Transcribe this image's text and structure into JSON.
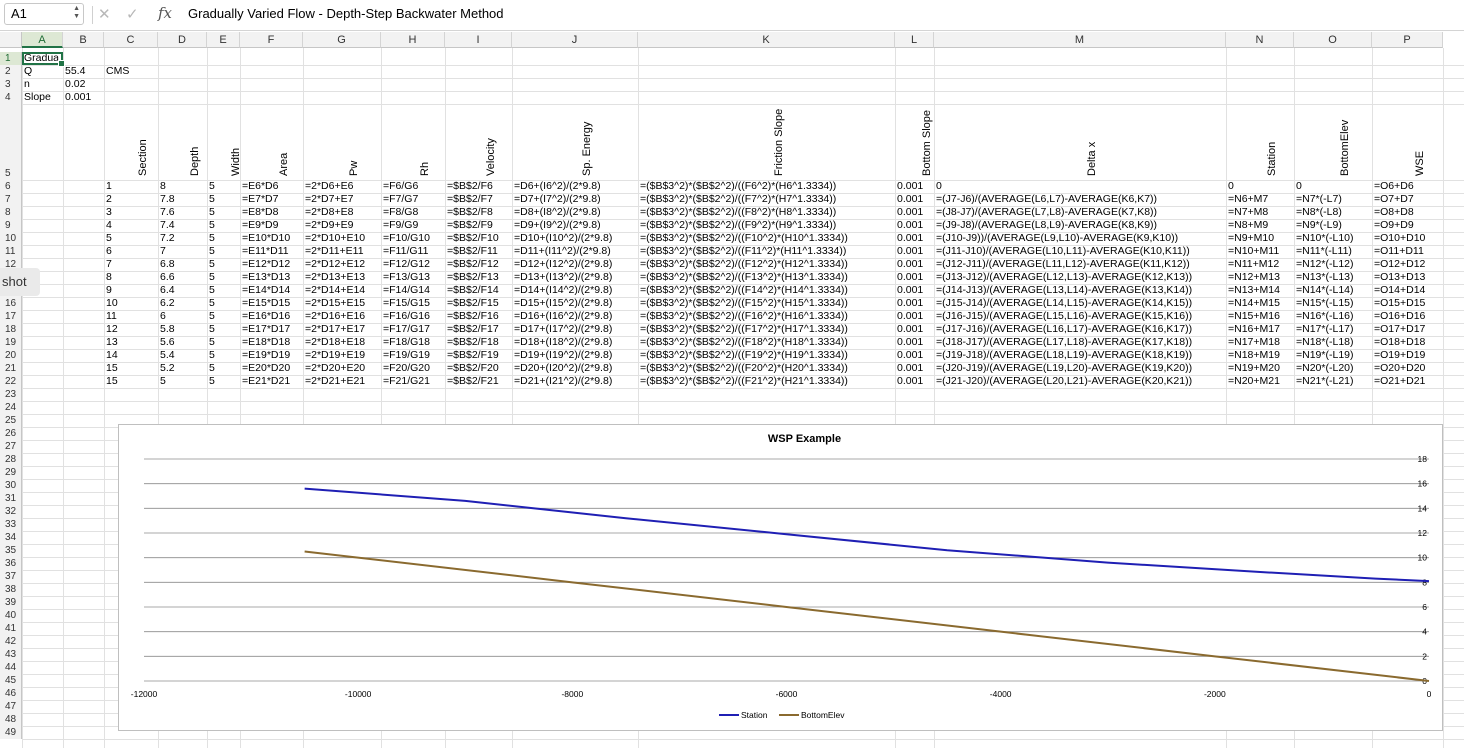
{
  "formula_bar": {
    "name_box": "A1",
    "formula": "Gradually Varied Flow - Depth-Step Backwater Method",
    "cancel_icon": "close-icon",
    "enter_icon": "check-icon",
    "fx_label": "fx"
  },
  "columns": [
    "A",
    "B",
    "C",
    "D",
    "E",
    "F",
    "G",
    "H",
    "I",
    "J",
    "K",
    "L",
    "M",
    "N",
    "O",
    "P"
  ],
  "rows": [
    "1",
    "2",
    "3",
    "4",
    "5",
    "6",
    "7",
    "8",
    "9",
    "10",
    "11",
    "12",
    "",
    "15",
    "16",
    "17",
    "18",
    "19",
    "20",
    "21",
    "22",
    "23",
    "24",
    "25",
    "26",
    "27",
    "28",
    "29",
    "30",
    "31",
    "32",
    "33",
    "34",
    "35",
    "36",
    "37",
    "38",
    "39",
    "40",
    "41",
    "42",
    "43",
    "44",
    "45",
    "46",
    "47",
    "48",
    "49"
  ],
  "inputs": {
    "a1": "Gradua",
    "a2": "Q",
    "b2": "55.4",
    "c2": "CMS",
    "a3": "n",
    "b3": "0.02",
    "a4": "Slope",
    "b4": "0.001"
  },
  "headers": [
    "Section",
    "Depth",
    "Width",
    "Area",
    "Pw",
    "Rh",
    "Velocity",
    "Sp. Energy",
    "Friction Slope",
    "Bottom Slope",
    "Delta x",
    "Station",
    "BottomElev",
    "WSE"
  ],
  "table": [
    [
      "1",
      "8",
      "5",
      "=E6*D6",
      "=2*D6+E6",
      "=F6/G6",
      "=$B$2/F6",
      "=D6+(I6^2)/(2*9.8)",
      "=($B$3^2)*($B$2^2)/((F6^2)*(H6^1.3334))",
      "0.001",
      "0",
      "0",
      "0",
      "=O6+D6"
    ],
    [
      "2",
      "7.8",
      "5",
      "=E7*D7",
      "=2*D7+E7",
      "=F7/G7",
      "=$B$2/F7",
      "=D7+(I7^2)/(2*9.8)",
      "=($B$3^2)*($B$2^2)/((F7^2)*(H7^1.3334))",
      "0.001",
      "=(J7-J6)/(AVERAGE(L6,L7)-AVERAGE(K6,K7))",
      "=N6+M7",
      "=N7*(-L7)",
      "=O7+D7"
    ],
    [
      "3",
      "7.6",
      "5",
      "=E8*D8",
      "=2*D8+E8",
      "=F8/G8",
      "=$B$2/F8",
      "=D8+(I8^2)/(2*9.8)",
      "=($B$3^2)*($B$2^2)/((F8^2)*(H8^1.3334))",
      "0.001",
      "=(J8-J7)/(AVERAGE(L7,L8)-AVERAGE(K7,K8))",
      "=N7+M8",
      "=N8*(-L8)",
      "=O8+D8"
    ],
    [
      "4",
      "7.4",
      "5",
      "=E9*D9",
      "=2*D9+E9",
      "=F9/G9",
      "=$B$2/F9",
      "=D9+(I9^2)/(2*9.8)",
      "=($B$3^2)*($B$2^2)/((F9^2)*(H9^1.3334))",
      "0.001",
      "=(J9-J8)/(AVERAGE(L8,L9)-AVERAGE(K8,K9))",
      "=N8+M9",
      "=N9*(-L9)",
      "=O9+D9"
    ],
    [
      "5",
      "7.2",
      "5",
      "=E10*D10",
      "=2*D10+E10",
      "=F10/G10",
      "=$B$2/F10",
      "=D10+(I10^2)/(2*9.8)",
      "=($B$3^2)*($B$2^2)/((F10^2)*(H10^1.3334))",
      "0.001",
      "=(J10-J9))/(AVERAGE(L9,L10)-AVERAGE(K9,K10))",
      "=N9+M10",
      "=N10*(-L10)",
      "=O10+D10"
    ],
    [
      "6",
      "7",
      "5",
      "=E11*D11",
      "=2*D11+E11",
      "=F11/G11",
      "=$B$2/F11",
      "=D11+(I11^2)/(2*9.8)",
      "=($B$3^2)*($B$2^2)/((F11^2)*(H11^1.3334))",
      "0.001",
      "=(J11-J10)/(AVERAGE(L10,L11)-AVERAGE(K10,K11))",
      "=N10+M11",
      "=N11*(-L11)",
      "=O11+D11"
    ],
    [
      "7",
      "6.8",
      "5",
      "=E12*D12",
      "=2*D12+E12",
      "=F12/G12",
      "=$B$2/F12",
      "=D12+(I12^2)/(2*9.8)",
      "=($B$3^2)*($B$2^2)/((F12^2)*(H12^1.3334))",
      "0.001",
      "=(J12-J11)/(AVERAGE(L11,L12)-AVERAGE(K11,K12))",
      "=N11+M12",
      "=N12*(-L12)",
      "=O12+D12"
    ],
    [
      "8",
      "6.6",
      "5",
      "=E13*D13",
      "=2*D13+E13",
      "=F13/G13",
      "=$B$2/F13",
      "=D13+(I13^2)/(2*9.8)",
      "=($B$3^2)*($B$2^2)/((F13^2)*(H13^1.3334))",
      "0.001",
      "=(J13-J12)/(AVERAGE(L12,L13)-AVERAGE(K12,K13))",
      "=N12+M13",
      "=N13*(-L13)",
      "=O13+D13"
    ],
    [
      "9",
      "6.4",
      "5",
      "=E14*D14",
      "=2*D14+E14",
      "=F14/G14",
      "=$B$2/F14",
      "=D14+(I14^2)/(2*9.8)",
      "=($B$3^2)*($B$2^2)/((F14^2)*(H14^1.3334))",
      "0.001",
      "=(J14-J13)/(AVERAGE(L13,L14)-AVERAGE(K13,K14))",
      "=N13+M14",
      "=N14*(-L14)",
      "=O14+D14"
    ],
    [
      "10",
      "6.2",
      "5",
      "=E15*D15",
      "=2*D15+E15",
      "=F15/G15",
      "=$B$2/F15",
      "=D15+(I15^2)/(2*9.8)",
      "=($B$3^2)*($B$2^2)/((F15^2)*(H15^1.3334))",
      "0.001",
      "=(J15-J14)/(AVERAGE(L14,L15)-AVERAGE(K14,K15))",
      "=N14+M15",
      "=N15*(-L15)",
      "=O15+D15"
    ],
    [
      "11",
      "6",
      "5",
      "=E16*D16",
      "=2*D16+E16",
      "=F16/G16",
      "=$B$2/F16",
      "=D16+(I16^2)/(2*9.8)",
      "=($B$3^2)*($B$2^2)/((F16^2)*(H16^1.3334))",
      "0.001",
      "=(J16-J15)/(AVERAGE(L15,L16)-AVERAGE(K15,K16))",
      "=N15+M16",
      "=N16*(-L16)",
      "=O16+D16"
    ],
    [
      "12",
      "5.8",
      "5",
      "=E17*D17",
      "=2*D17+E17",
      "=F17/G17",
      "=$B$2/F17",
      "=D17+(I17^2)/(2*9.8)",
      "=($B$3^2)*($B$2^2)/((F17^2)*(H17^1.3334))",
      "0.001",
      "=(J17-J16)/(AVERAGE(L16,L17)-AVERAGE(K16,K17))",
      "=N16+M17",
      "=N17*(-L17)",
      "=O17+D17"
    ],
    [
      "13",
      "5.6",
      "5",
      "=E18*D18",
      "=2*D18+E18",
      "=F18/G18",
      "=$B$2/F18",
      "=D18+(I18^2)/(2*9.8)",
      "=($B$3^2)*($B$2^2)/((F18^2)*(H18^1.3334))",
      "0.001",
      "=(J18-J17)/(AVERAGE(L17,L18)-AVERAGE(K17,K18))",
      "=N17+M18",
      "=N18*(-L18)",
      "=O18+D18"
    ],
    [
      "14",
      "5.4",
      "5",
      "=E19*D19",
      "=2*D19+E19",
      "=F19/G19",
      "=$B$2/F19",
      "=D19+(I19^2)/(2*9.8)",
      "=($B$3^2)*($B$2^2)/((F19^2)*(H19^1.3334))",
      "0.001",
      "=(J19-J18)/(AVERAGE(L18,L19)-AVERAGE(K18,K19))",
      "=N18+M19",
      "=N19*(-L19)",
      "=O19+D19"
    ],
    [
      "15",
      "5.2",
      "5",
      "=E20*D20",
      "=2*D20+E20",
      "=F20/G20",
      "=$B$2/F20",
      "=D20+(I20^2)/(2*9.8)",
      "=($B$3^2)*($B$2^2)/((F20^2)*(H20^1.3334))",
      "0.001",
      "=(J20-J19)/(AVERAGE(L19,L20)-AVERAGE(K19,K20))",
      "=N19+M20",
      "=N20*(-L20)",
      "=O20+D20"
    ],
    [
      "15",
      "5",
      "5",
      "=E21*D21",
      "=2*D21+E21",
      "=F21/G21",
      "=$B$2/F21",
      "=D21+(I21^2)/(2*9.8)",
      "=($B$3^2)*($B$2^2)/((F21^2)*(H21^1.3334))",
      "0.001",
      "=(J21-J20)/(AVERAGE(L20,L21)-AVERAGE(K20,K21))",
      "=N20+M21",
      "=N21*(-L21)",
      "=O21+D21"
    ]
  ],
  "tooltip": "shot",
  "chart_data": {
    "type": "line",
    "title": "WSP Example",
    "xlim": [
      -12000,
      0
    ],
    "ylim": [
      0,
      18
    ],
    "x_ticks": [
      "-12000",
      "-10000",
      "-8000",
      "-6000",
      "-4000",
      "-2000",
      "0"
    ],
    "y_ticks": [
      "0",
      "2",
      "4",
      "6",
      "8",
      "10",
      "12",
      "14",
      "16",
      "18"
    ],
    "grid": true,
    "legend": "bottom",
    "series": [
      {
        "name": "Station",
        "color": "#1f1fb4",
        "x": [
          -10500,
          -9000,
          -7500,
          -6000,
          -4500,
          -3000,
          -1500,
          -500,
          0
        ],
        "y": [
          15.6,
          14.6,
          13.2,
          11.9,
          10.6,
          9.6,
          8.8,
          8.3,
          8.1
        ]
      },
      {
        "name": "BottomElev",
        "color": "#8a6a2f",
        "x": [
          -10500,
          -8000,
          -6000,
          -4000,
          -2000,
          0
        ],
        "y": [
          10.5,
          8.0,
          6.0,
          4.0,
          2.0,
          0.0
        ]
      }
    ]
  }
}
